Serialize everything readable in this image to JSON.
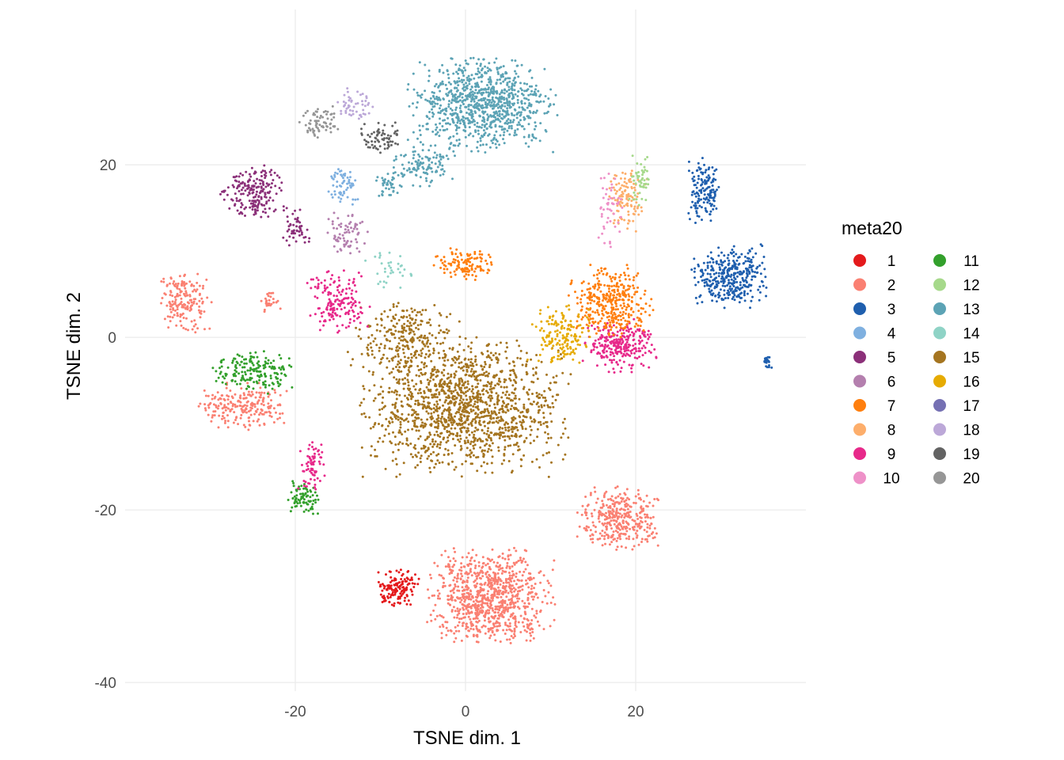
{
  "chart_data": {
    "type": "scatter",
    "title": "",
    "xlabel": "TSNE dim. 1",
    "ylabel": "TSNE dim. 2",
    "xlim": [
      -40,
      40
    ],
    "ylim": [
      -41,
      38
    ],
    "x_ticks": [
      -20,
      0,
      20
    ],
    "y_ticks": [
      20,
      0,
      -20,
      -40
    ],
    "x_tick_labels": [
      "-20",
      "0",
      "20"
    ],
    "y_tick_labels": [
      "20",
      "0",
      "-20",
      "-40"
    ],
    "grid": true,
    "legend": {
      "title": "meta20",
      "placement": "right",
      "columns": 2,
      "entries": [
        {
          "label": "1",
          "color": "#e41a1c"
        },
        {
          "label": "2",
          "color": "#fa8072"
        },
        {
          "label": "3",
          "color": "#1f5fae"
        },
        {
          "label": "4",
          "color": "#7fb0e0"
        },
        {
          "label": "5",
          "color": "#8b3079"
        },
        {
          "label": "6",
          "color": "#b47fae"
        },
        {
          "label": "7",
          "color": "#ff7f0e"
        },
        {
          "label": "8",
          "color": "#fdae6b"
        },
        {
          "label": "9",
          "color": "#e7298a"
        },
        {
          "label": "10",
          "color": "#ee91c8"
        },
        {
          "label": "11",
          "color": "#33a02c"
        },
        {
          "label": "12",
          "color": "#a6d98b"
        },
        {
          "label": "13",
          "color": "#5ca3b5"
        },
        {
          "label": "14",
          "color": "#8fd3c6"
        },
        {
          "label": "15",
          "color": "#a57520"
        },
        {
          "label": "16",
          "color": "#e6ab02"
        },
        {
          "label": "17",
          "color": "#7570b3"
        },
        {
          "label": "18",
          "color": "#bca8d8"
        },
        {
          "label": "19",
          "color": "#636363"
        },
        {
          "label": "20",
          "color": "#969696"
        }
      ]
    },
    "clusters": [
      {
        "group": "15",
        "center": [
          0,
          -8
        ],
        "spread": [
          10,
          6.5
        ],
        "n": 1400
      },
      {
        "group": "15",
        "center": [
          -7,
          0
        ],
        "spread": [
          5,
          3.5
        ],
        "n": 250
      },
      {
        "group": "13",
        "center": [
          2,
          27
        ],
        "spread": [
          7,
          4.5
        ],
        "n": 900
      },
      {
        "group": "13",
        "center": [
          -5,
          20
        ],
        "spread": [
          3,
          2
        ],
        "n": 120
      },
      {
        "group": "13",
        "center": [
          -9,
          18
        ],
        "spread": [
          1.5,
          1.5
        ],
        "n": 40
      },
      {
        "group": "3",
        "center": [
          31,
          7
        ],
        "spread": [
          3.5,
          3
        ],
        "n": 350
      },
      {
        "group": "3",
        "center": [
          28,
          17
        ],
        "spread": [
          1.6,
          3
        ],
        "n": 150
      },
      {
        "group": "3",
        "center": [
          35.5,
          -2.8
        ],
        "spread": [
          0.4,
          0.6
        ],
        "n": 20
      },
      {
        "group": "2",
        "center": [
          3,
          -30
        ],
        "spread": [
          6,
          4.5
        ],
        "n": 900
      },
      {
        "group": "2",
        "center": [
          18,
          -21
        ],
        "spread": [
          4,
          3
        ],
        "n": 350
      },
      {
        "group": "2",
        "center": [
          -33,
          4
        ],
        "spread": [
          2.5,
          3
        ],
        "n": 170
      },
      {
        "group": "2",
        "center": [
          -26,
          -8
        ],
        "spread": [
          4.5,
          2.2
        ],
        "n": 220
      },
      {
        "group": "2",
        "center": [
          -23,
          4
        ],
        "spread": [
          1,
          1.3
        ],
        "n": 30
      },
      {
        "group": "1",
        "center": [
          -8,
          -29
        ],
        "spread": [
          2,
          1.8
        ],
        "n": 140
      },
      {
        "group": "11",
        "center": [
          -25,
          -4
        ],
        "spread": [
          4,
          2
        ],
        "n": 180
      },
      {
        "group": "11",
        "center": [
          -19,
          -18.5
        ],
        "spread": [
          1.5,
          1.7
        ],
        "n": 80
      },
      {
        "group": "9",
        "center": [
          -18,
          -15
        ],
        "spread": [
          1.5,
          2.5
        ],
        "n": 70
      },
      {
        "group": "9",
        "center": [
          18,
          -1
        ],
        "spread": [
          3.5,
          2.5
        ],
        "n": 260
      },
      {
        "group": "9",
        "center": [
          -15,
          4
        ],
        "spread": [
          3,
          3
        ],
        "n": 170
      },
      {
        "group": "7",
        "center": [
          17,
          4
        ],
        "spread": [
          4,
          3.5
        ],
        "n": 350
      },
      {
        "group": "7",
        "center": [
          0,
          8.5
        ],
        "spread": [
          3,
          1.5
        ],
        "n": 120
      },
      {
        "group": "16",
        "center": [
          11,
          0
        ],
        "spread": [
          3,
          3
        ],
        "n": 160
      },
      {
        "group": "8",
        "center": [
          19,
          16
        ],
        "spread": [
          2,
          3
        ],
        "n": 110
      },
      {
        "group": "12",
        "center": [
          20.5,
          18
        ],
        "spread": [
          1,
          2.5
        ],
        "n": 50
      },
      {
        "group": "10",
        "center": [
          17,
          15
        ],
        "spread": [
          1.3,
          4
        ],
        "n": 50
      },
      {
        "group": "5",
        "center": [
          -25,
          17
        ],
        "spread": [
          3,
          2.5
        ],
        "n": 200
      },
      {
        "group": "5",
        "center": [
          -20,
          13
        ],
        "spread": [
          1.5,
          2
        ],
        "n": 50
      },
      {
        "group": "4",
        "center": [
          -14.5,
          17.5
        ],
        "spread": [
          1.5,
          1.8
        ],
        "n": 60
      },
      {
        "group": "6",
        "center": [
          -14,
          12
        ],
        "spread": [
          2,
          2
        ],
        "n": 70
      },
      {
        "group": "18",
        "center": [
          -13,
          27
        ],
        "spread": [
          1.8,
          1.5
        ],
        "n": 50
      },
      {
        "group": "20",
        "center": [
          -17,
          25
        ],
        "spread": [
          2,
          1.5
        ],
        "n": 70
      },
      {
        "group": "19",
        "center": [
          -10,
          23
        ],
        "spread": [
          2,
          1.5
        ],
        "n": 70
      },
      {
        "group": "14",
        "center": [
          -9,
          8
        ],
        "spread": [
          2.5,
          1.8
        ],
        "n": 35
      }
    ]
  }
}
